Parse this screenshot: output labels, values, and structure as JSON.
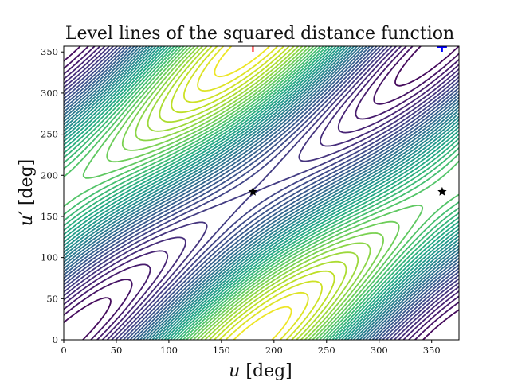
{
  "chart_data": {
    "type": "contour",
    "title": "Level lines of the squared distance function",
    "xlabel": "u [deg]",
    "ylabel": "u′ [deg]",
    "xlim": [
      0,
      376
    ],
    "ylim": [
      0,
      357
    ],
    "xticks": [
      0,
      50,
      100,
      150,
      200,
      250,
      300,
      350
    ],
    "yticks": [
      0,
      50,
      100,
      150,
      200,
      250,
      300,
      350
    ],
    "grid": false,
    "colormap": "viridis",
    "n_levels": 40,
    "maxima": [
      {
        "u": 180,
        "u_prime": 0
      },
      {
        "u": 180,
        "u_prime": 360
      }
    ],
    "saddle_points": [
      {
        "u": 180,
        "u_prime": 180,
        "marker": "star",
        "color": "#000000"
      },
      {
        "u": 360,
        "u_prime": 180,
        "marker": "star",
        "color": "#000000"
      }
    ],
    "markers": [
      {
        "u": 180,
        "u_prime": 360,
        "marker": "vertical tick",
        "color": "#ff0000"
      },
      {
        "u": 360,
        "u_prime": 360,
        "marker": "plus",
        "color": "#0000ff"
      }
    ]
  },
  "plot": {
    "title": "Level lines of the squared distance function",
    "xlabel_var": "u",
    "xlabel_unit": "[deg]",
    "ylabel_var": "u′",
    "ylabel_unit": "[deg]"
  }
}
